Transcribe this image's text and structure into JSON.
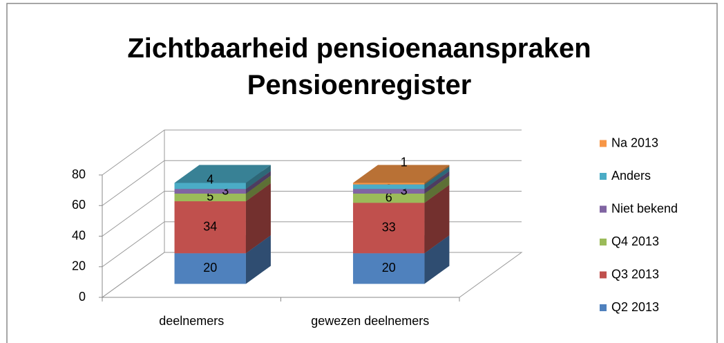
{
  "chart_data": {
    "type": "bar3d_stacked",
    "title": "Zichtbaarheid pensioenaanspraken Pensioenregister",
    "categories": [
      "deelnemers",
      "gewezen deelnemers"
    ],
    "series": [
      {
        "name": "Q2 2013",
        "color": "#4f81bd",
        "values": [
          20,
          20
        ]
      },
      {
        "name": "Q3 2013",
        "color": "#c0504d",
        "values": [
          34,
          33
        ]
      },
      {
        "name": "Q4 2013",
        "color": "#9bbb59",
        "values": [
          5,
          6
        ]
      },
      {
        "name": "Niet bekend",
        "color": "#8064a2",
        "values": [
          3,
          3
        ]
      },
      {
        "name": "Anders",
        "color": "#4bacc6",
        "values": [
          4,
          3
        ]
      },
      {
        "name": "Na 2013",
        "color": "#f79646",
        "values": [
          null,
          1
        ]
      }
    ],
    "ylim": [
      0,
      80
    ],
    "yticks": [
      0,
      20,
      40,
      60,
      80
    ],
    "grid": true,
    "legend": "right"
  }
}
